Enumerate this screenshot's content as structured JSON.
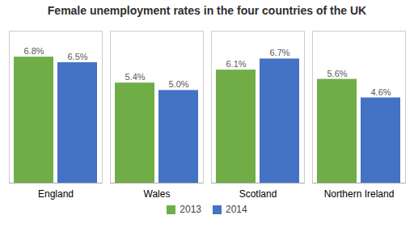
{
  "chart_data": {
    "type": "bar",
    "title": "Female unemployment rates in the four countries of the UK",
    "categories": [
      "England",
      "Wales",
      "Scotland",
      "Northern Ireland"
    ],
    "series": [
      {
        "name": "2013",
        "color": "#70ad47",
        "values": [
          6.8,
          5.4,
          6.1,
          5.6
        ],
        "value_labels": [
          "6.8%",
          "5.4%",
          "6.1%",
          "5.6%"
        ]
      },
      {
        "name": "2014",
        "color": "#4472c4",
        "values": [
          6.5,
          5.0,
          6.7,
          4.6
        ],
        "value_labels": [
          "6.5%",
          "5.0%",
          "6.7%",
          "4.6%"
        ]
      }
    ],
    "ylim": [
      0,
      8.2
    ],
    "grid": false,
    "data_labels": true,
    "legend": "bottom",
    "tick_labels": "x"
  }
}
